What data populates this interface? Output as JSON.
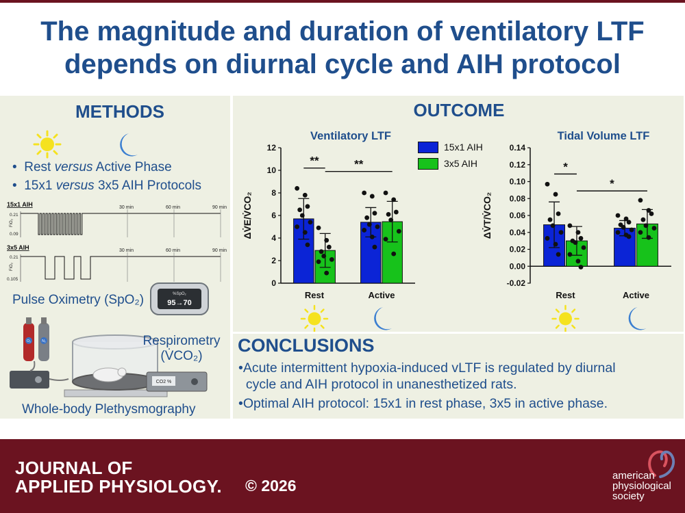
{
  "title_line1": "The magnitude and duration of ventilatory LTF",
  "title_line2": "depends on diurnal cycle and AIH protocol",
  "methods": {
    "heading": "METHODS",
    "bullet1_a": "Rest ",
    "bullet1_b": "versus",
    "bullet1_c": " Active Phase",
    "bullet2_a": "15x1 ",
    "bullet2_b": "versus",
    "bullet2_c": " 3x5 AIH Protocols",
    "protocol1_name": "15x1 AIH",
    "protocol2_name": "3x5 AIH",
    "time_labels": [
      "30 min",
      "60 min",
      "90 min"
    ],
    "p1_fio2_high": "0.21",
    "p1_fio2_low": "0.09",
    "p2_fio2_high": "0.21",
    "p2_fio2_low": "0.105",
    "fio2_axis": "FiO₂",
    "pulse_oximetry": "Pulse Oximetry (SpO₂)",
    "oximeter_top": "%SpO₂",
    "oximeter_value": "95→70",
    "respirometry_line1": "Respirometry",
    "respirometry_line2": "(V̇CO₂)",
    "co2_meter": "CO2 %",
    "gas_o2": "O₂",
    "gas_n2": "N₂",
    "plethysmography": "Whole-body Plethysmography"
  },
  "outcome": {
    "heading": "OUTCOME"
  },
  "legend": [
    {
      "label": "15x1 AIH",
      "color": "#0b24d6"
    },
    {
      "label": "3x5 AIH",
      "color": "#17c21b"
    }
  ],
  "chart_data": [
    {
      "type": "bar",
      "title": "Ventilatory LTF",
      "ylabel": "ΔV̇E/V̇CO₂",
      "categories": [
        "Rest",
        "Active"
      ],
      "ylim": [
        0,
        12
      ],
      "yticks": [
        "0",
        "2",
        "4",
        "6",
        "8",
        "10",
        "12"
      ],
      "series": [
        {
          "name": "15x1 AIH",
          "values": [
            5.7,
            5.4
          ],
          "err": [
            1.8,
            1.3
          ]
        },
        {
          "name": "3x5 AIH",
          "values": [
            2.9,
            5.45
          ],
          "err": [
            1.5,
            1.8
          ]
        }
      ],
      "points": {
        "Rest": {
          "15x1 AIH": [
            8.4,
            7.8,
            6.8,
            6.5,
            6.0,
            5.4,
            5.0,
            4.5,
            3.4
          ],
          "3x5 AIH": [
            4.9,
            3.8,
            3.2,
            2.8,
            2.4,
            2.1,
            1.9,
            0.9
          ]
        },
        "Active": {
          "15x1 AIH": [
            8.0,
            7.7,
            6.2,
            5.8,
            5.2,
            5.0,
            4.7,
            4.1,
            3.2
          ],
          "3x5 AIH": [
            8.0,
            7.4,
            6.3,
            6.1,
            5.6,
            4.6,
            3.9,
            2.6
          ]
        }
      },
      "significance": [
        {
          "label": "**",
          "from": "Rest 15x1 AIH",
          "to": "Rest 3x5 AIH",
          "y": 10.2
        },
        {
          "label": "**",
          "from": "Rest 3x5 AIH",
          "to": "Active 3x5 AIH",
          "y": 9.9
        }
      ]
    },
    {
      "type": "bar",
      "title": "Tidal Volume LTF",
      "ylabel": "ΔV̇T/V̇CO₂",
      "categories": [
        "Rest",
        "Active"
      ],
      "ylim": [
        -0.02,
        0.14
      ],
      "yticks": [
        "-0.02",
        "0.00",
        "0.02",
        "0.04",
        "0.06",
        "0.08",
        "0.10",
        "0.12",
        "0.14"
      ],
      "series": [
        {
          "name": "15x1 AIH",
          "values": [
            0.049,
            0.045
          ],
          "err": [
            0.027,
            0.009
          ]
        },
        {
          "name": "3x5 AIH",
          "values": [
            0.03,
            0.05
          ],
          "err": [
            0.017,
            0.017
          ]
        }
      ],
      "points": {
        "Rest": {
          "15x1 AIH": [
            0.097,
            0.085,
            0.062,
            0.055,
            0.048,
            0.04,
            0.033,
            0.026,
            0.014
          ],
          "3x5 AIH": [
            0.048,
            0.04,
            0.033,
            0.03,
            0.028,
            0.022,
            0.014,
            0.006,
            -0.001
          ]
        },
        "Active": {
          "15x1 AIH": [
            0.06,
            0.056,
            0.052,
            0.049,
            0.046,
            0.043,
            0.04,
            0.037,
            0.035
          ],
          "3x5 AIH": [
            0.078,
            0.066,
            0.062,
            0.055,
            0.048,
            0.045,
            0.04,
            0.034
          ]
        }
      },
      "significance": [
        {
          "label": "*",
          "from": "Rest 15x1 AIH",
          "to": "Rest 3x5 AIH",
          "y": 0.109
        },
        {
          "label": "*",
          "from": "Rest 3x5 AIH",
          "to": "Active 3x5 AIH",
          "y": 0.089
        }
      ]
    }
  ],
  "conclusions": {
    "heading": "CONCLUSIONS",
    "line1": "•Acute intermittent hypoxia-induced vLTF is regulated by diurnal",
    "line2": "  cycle and AIH protocol in unanesthetized rats.",
    "line3": "•Optimal AIH protocol: 15x1 in rest phase, 3x5 in active phase."
  },
  "footer": {
    "journal_line1": "JOURNAL OF",
    "journal_line2": "APPLIED PHYSIOLOGY.",
    "copyright": "© 2026",
    "society_line1": "american",
    "society_line2": "physiological",
    "society_line3": "society"
  },
  "colors": {
    "footer": "#6b1320",
    "heading": "#1f4e8c",
    "panel": "#eef0e3",
    "sun": "#f5e21f",
    "moon": "#3b7fd1"
  }
}
